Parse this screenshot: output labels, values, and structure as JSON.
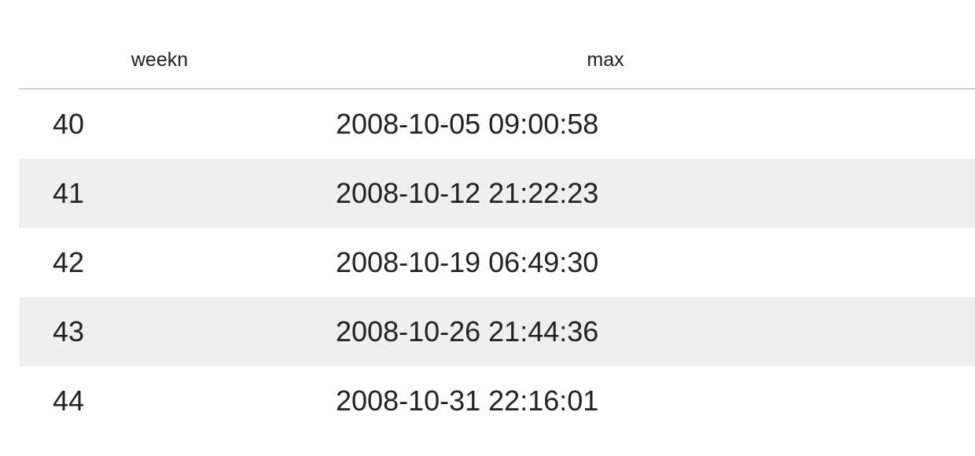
{
  "table": {
    "columns": [
      "weekn",
      "max"
    ],
    "rows": [
      {
        "weekn": "40",
        "max": "2008-10-05 09:00:58"
      },
      {
        "weekn": "41",
        "max": "2008-10-12 21:22:23"
      },
      {
        "weekn": "42",
        "max": "2008-10-19 06:49:30"
      },
      {
        "weekn": "43",
        "max": "2008-10-26 21:44:36"
      },
      {
        "weekn": "44",
        "max": "2008-10-31 22:16:01"
      }
    ]
  },
  "colors": {
    "stripe": "#efefef",
    "header_rule": "#d3d3d3",
    "text": "#222222"
  }
}
